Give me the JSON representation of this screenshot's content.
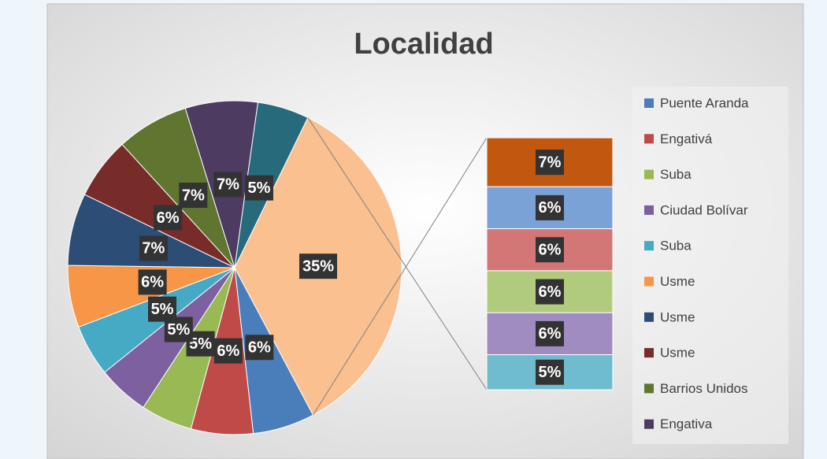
{
  "chart_data": {
    "type": "pie-of-bar",
    "title": "Localidad",
    "pie": {
      "values": [
        6,
        6,
        5,
        5,
        5,
        6,
        7,
        6,
        7,
        7,
        5,
        35
      ],
      "value_labels": [
        "6%",
        "6%",
        "5%",
        "5%",
        "5%",
        "6%",
        "7%",
        "6%",
        "7%",
        "7%",
        "5%",
        "35%"
      ],
      "colors": [
        "#4a7ebb",
        "#be4b48",
        "#98b954",
        "#7d60a0",
        "#46aac5",
        "#f79646",
        "#2c4d75",
        "#772c2a",
        "#5f7530",
        "#4d3b62",
        "#276a7c",
        "#fac090"
      ]
    },
    "bar": {
      "values": [
        7,
        6,
        6,
        6,
        6,
        5
      ],
      "value_labels": [
        "7%",
        "6%",
        "6%",
        "6%",
        "6%",
        "5%"
      ],
      "colors": [
        "#c0580f",
        "#7aa2d6",
        "#d27676",
        "#b1cb7e",
        "#a08cc0",
        "#6fbccf"
      ]
    },
    "legend": [
      "Puente Aranda",
      "Engativá",
      "Suba",
      "Ciudad Bolívar",
      "Suba",
      "Usme",
      "Usme",
      "Usme",
      "Barrios Unidos",
      "Engativa"
    ],
    "legend_position": "right"
  }
}
